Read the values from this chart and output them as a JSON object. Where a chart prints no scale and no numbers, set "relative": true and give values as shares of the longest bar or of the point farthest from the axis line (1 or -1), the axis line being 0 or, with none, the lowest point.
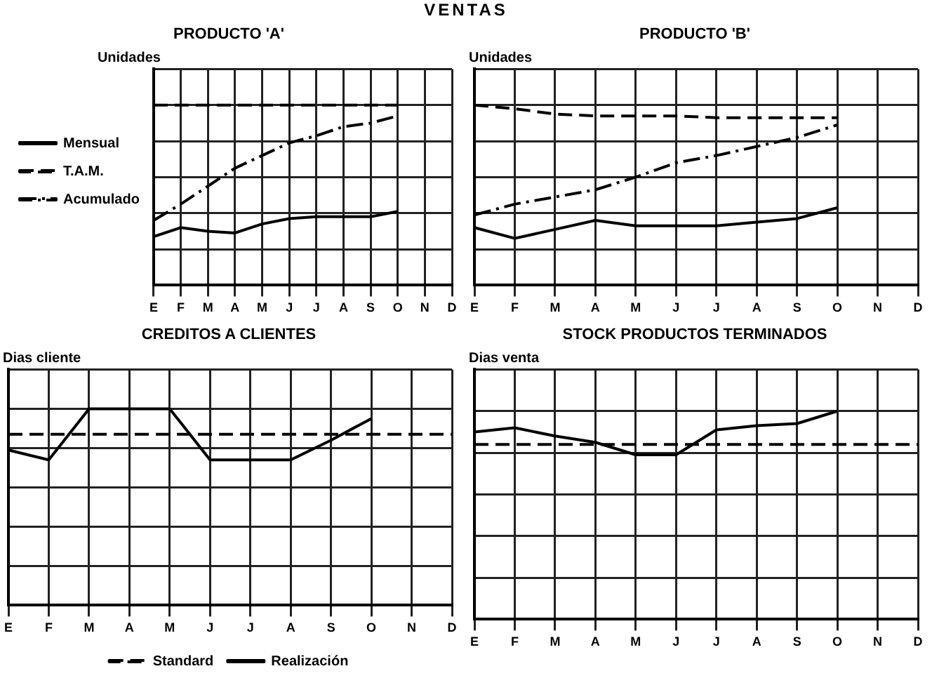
{
  "chart_data": [
    {
      "type": "line",
      "title": "VENTAS",
      "subtitle": "PRODUCTO 'A'",
      "ylabel": "Unidades",
      "relative": true,
      "grid": true,
      "legend": "left",
      "marker": "none",
      "categories": [
        "E",
        "F",
        "M",
        "A",
        "M",
        "J",
        "J",
        "A",
        "S",
        "O",
        "N",
        "D"
      ],
      "series": [
        {
          "name": "Mensual",
          "color": "#000000",
          "line_style": "solid",
          "values": [
            0.27,
            0.32,
            0.3,
            0.29,
            0.34,
            0.37,
            0.38,
            0.38,
            0.38,
            0.41,
            null,
            null
          ]
        },
        {
          "name": "T.A.M.",
          "color": "#000000",
          "line_style": "dashed",
          "values": [
            1,
            1,
            1,
            1,
            1,
            1,
            1,
            1,
            1,
            1,
            null,
            null
          ]
        },
        {
          "name": "Acumulado",
          "color": "#000000",
          "line_style": "dotted",
          "values": [
            0.36,
            0.45,
            0.55,
            0.65,
            0.72,
            0.79,
            0.83,
            0.88,
            0.9,
            0.94,
            null,
            null
          ]
        }
      ]
    },
    {
      "type": "line",
      "title": "PRODUCTO 'B'",
      "ylabel": "Unidades",
      "relative": true,
      "grid": true,
      "marker": "none",
      "categories": [
        "E",
        "F",
        "M",
        "A",
        "M",
        "J",
        "J",
        "A",
        "S",
        "O",
        "N",
        "D"
      ],
      "series": [
        {
          "color": "#000000",
          "line_style": "solid",
          "values": [
            0.32,
            0.26,
            0.31,
            0.36,
            0.33,
            0.33,
            0.33,
            0.35,
            0.37,
            0.43,
            null,
            null
          ]
        },
        {
          "color": "#000000",
          "line_style": "dashed",
          "values": [
            1,
            0.98,
            0.95,
            0.94,
            0.94,
            0.94,
            0.93,
            0.93,
            0.93,
            0.93,
            null,
            null
          ]
        },
        {
          "color": "#000000",
          "line_style": "dotted",
          "values": [
            0.39,
            0.45,
            0.49,
            0.53,
            0.6,
            0.68,
            0.72,
            0.77,
            0.82,
            0.89,
            null,
            null
          ]
        }
      ]
    },
    {
      "type": "line",
      "title": "CREDITOS A CLIENTES",
      "ylabel": "Dias cliente",
      "relative": true,
      "grid": true,
      "legend": "bottom",
      "marker": "none",
      "categories": [
        "E",
        "F",
        "M",
        "A",
        "M",
        "J",
        "J",
        "A",
        "S",
        "O",
        "N",
        "D"
      ],
      "series": [
        {
          "name": "Standard",
          "color": "#000000",
          "line_style": "dashed",
          "values": [
            0.87,
            0.87,
            0.87,
            0.87,
            0.87,
            0.87,
            0.87,
            0.87,
            0.87,
            0.87,
            0.87,
            0.87
          ]
        },
        {
          "name": "Realización",
          "color": "#000000",
          "line_style": "solid",
          "values": [
            0.79,
            0.74,
            1.0,
            1.0,
            1.0,
            0.74,
            0.74,
            0.74,
            0.84,
            0.95,
            null,
            null
          ]
        }
      ]
    },
    {
      "type": "line",
      "title": "STOCK PRODUCTOS TERMINADOS",
      "ylabel": "Dias venta",
      "relative": true,
      "grid": true,
      "marker": "none",
      "categories": [
        "E",
        "F",
        "M",
        "A",
        "M",
        "J",
        "J",
        "A",
        "S",
        "O",
        "N",
        "D"
      ],
      "series": [
        {
          "color": "#000000",
          "line_style": "dashed",
          "values": [
            0.84,
            0.84,
            0.84,
            0.84,
            0.84,
            0.84,
            0.84,
            0.84,
            0.84,
            0.84,
            0.84,
            0.84
          ]
        },
        {
          "color": "#000000",
          "line_style": "solid",
          "values": [
            0.9,
            0.92,
            0.88,
            0.85,
            0.79,
            0.79,
            0.91,
            0.93,
            0.94,
            1.0,
            null,
            null
          ]
        }
      ]
    }
  ]
}
